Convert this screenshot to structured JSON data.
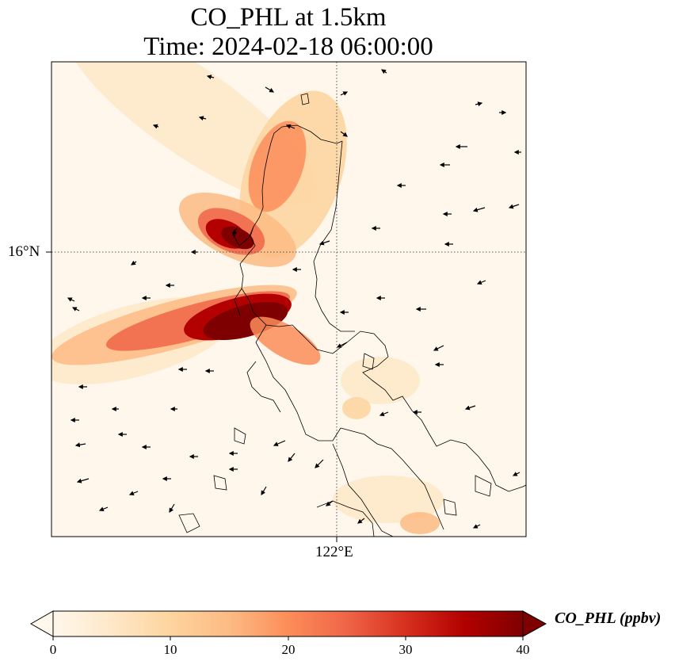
{
  "title": {
    "line1": "CO_PHL at 1.5km",
    "line2": "Time: 2024-02-18 06:00:00"
  },
  "map": {
    "variable": "CO_PHL",
    "height_level": "1.5km",
    "lat_tick_label": "16°N",
    "lon_tick_label": "122°E",
    "gridline_style": "dotted",
    "region": "Northern Luzon, Philippines",
    "wind_vectors": "black arrows, predominantly easterly flow"
  },
  "colorbar": {
    "label": "CO_PHL (ppbv)",
    "colormap": "OrRd",
    "min": 0,
    "max": 40,
    "ticks": [
      "0",
      "10",
      "20",
      "30",
      "40"
    ],
    "extend": "both",
    "colors": [
      "#fff7ec",
      "#fee8c8",
      "#fdd49e",
      "#fdbb84",
      "#fc8d59",
      "#ef6548",
      "#d7301f",
      "#b30000",
      "#7f0000"
    ]
  }
}
